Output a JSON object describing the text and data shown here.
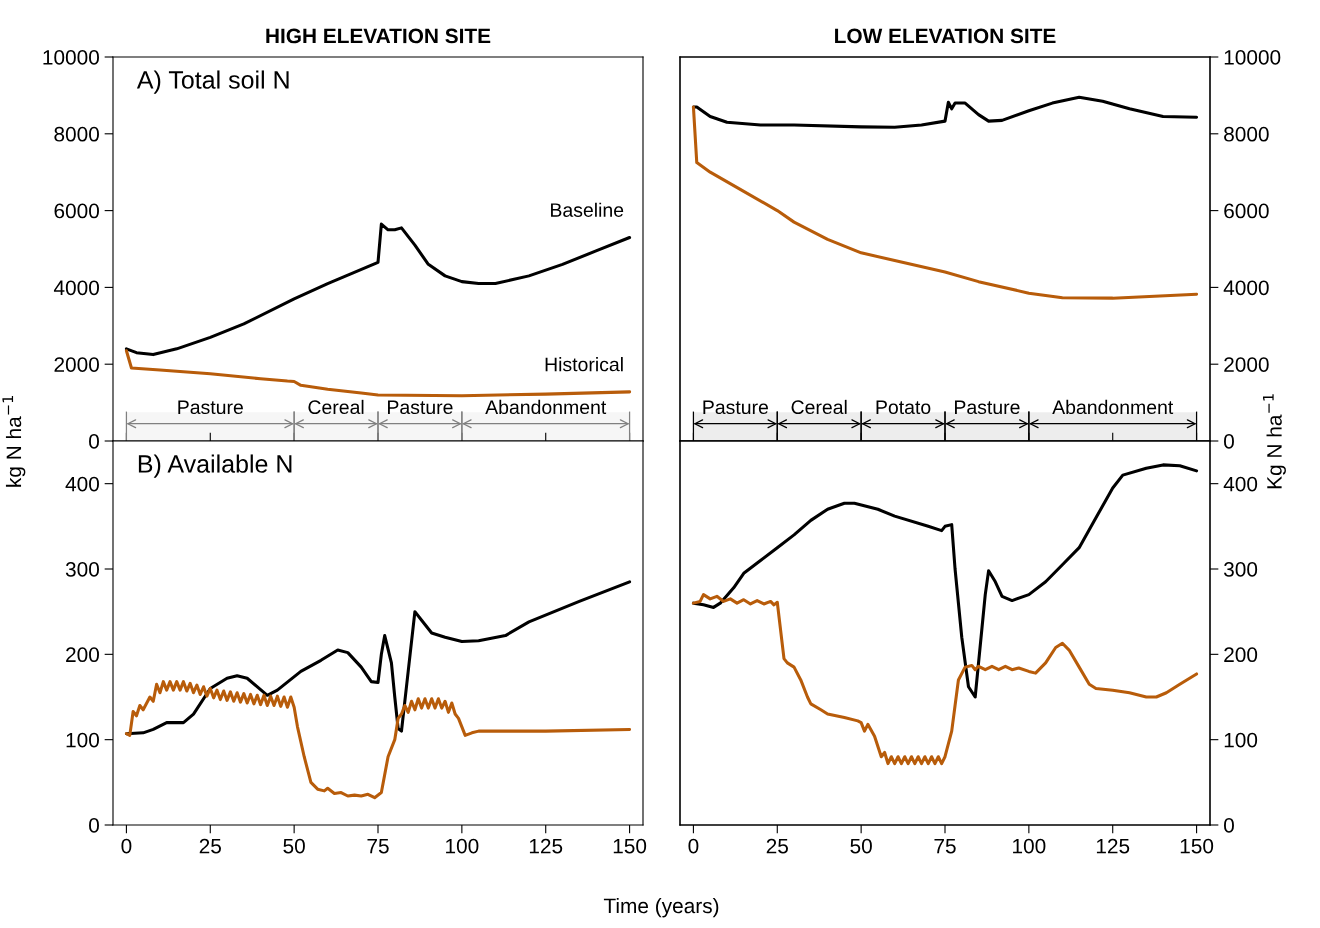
{
  "chart_data": [
    {
      "type": "line",
      "title": "HIGH ELEVATION SITE",
      "annotations": [
        "A) Total soil N"
      ],
      "xlim": [
        -4,
        154
      ],
      "xticks": [
        0,
        25,
        50,
        75,
        100,
        125,
        150
      ],
      "ylim": [
        0,
        10000
      ],
      "yticks": [
        0,
        2000,
        4000,
        6000,
        8000,
        10000
      ],
      "tick_labels": "y",
      "bands": [
        {
          "axis": "x",
          "from": 0,
          "to": 50,
          "label": "Pasture",
          "color": "#808080"
        },
        {
          "axis": "x",
          "from": 50,
          "to": 75,
          "label": "Cereal",
          "color": "#808080"
        },
        {
          "axis": "x",
          "from": 75,
          "to": 100,
          "label": "Pasture",
          "color": "#808080"
        },
        {
          "axis": "x",
          "from": 100,
          "to": 150,
          "label": "Abandonment",
          "color": "#808080"
        }
      ],
      "series": [
        {
          "name": "Baseline",
          "color": "#000000",
          "x": [
            0,
            3,
            8,
            15,
            25,
            35,
            50,
            60,
            75,
            76,
            78,
            80,
            82,
            86,
            90,
            95,
            100,
            105,
            110,
            120,
            130,
            140,
            150
          ],
          "values": [
            2400,
            2300,
            2250,
            2400,
            2700,
            3050,
            3700,
            4100,
            4650,
            5650,
            5500,
            5500,
            5550,
            5100,
            4600,
            4300,
            4150,
            4100,
            4100,
            4300,
            4600,
            4950,
            5300
          ]
        },
        {
          "name": "Historical",
          "color": "#b85c0a",
          "x": [
            0,
            1.5,
            10,
            25,
            40,
            48,
            50,
            52,
            60,
            70,
            75,
            100,
            125,
            150
          ],
          "values": [
            2350,
            1900,
            1850,
            1750,
            1620,
            1560,
            1550,
            1450,
            1350,
            1250,
            1200,
            1180,
            1220,
            1280
          ]
        }
      ]
    },
    {
      "type": "line",
      "title": "LOW ELEVATION SITE",
      "xlim": [
        -4,
        154
      ],
      "xticks": [
        0,
        25,
        50,
        75,
        100,
        125,
        150
      ],
      "y2lim": [
        0,
        10000
      ],
      "y2ticks": [
        0,
        2000,
        4000,
        6000,
        8000,
        10000
      ],
      "tick_labels": "y",
      "bands": [
        {
          "axis": "x",
          "from": 0,
          "to": 25,
          "label": "Pasture",
          "color": "#000000"
        },
        {
          "axis": "x",
          "from": 25,
          "to": 50,
          "label": "Cereal",
          "color": "#000000"
        },
        {
          "axis": "x",
          "from": 50,
          "to": 75,
          "label": "Potato",
          "color": "#000000"
        },
        {
          "axis": "x",
          "from": 75,
          "to": 100,
          "label": "Pasture",
          "color": "#000000"
        },
        {
          "axis": "x",
          "from": 100,
          "to": 150,
          "label": "Abandonment",
          "color": "#000000"
        }
      ],
      "series": [
        {
          "color": "#000000",
          "axis": "y2",
          "x": [
            0,
            1,
            5,
            10,
            20,
            30,
            50,
            60,
            68,
            75,
            76,
            77,
            78,
            81,
            85,
            88,
            92,
            100,
            107,
            115,
            122,
            130,
            140,
            150
          ],
          "values": [
            8700,
            8700,
            8450,
            8300,
            8230,
            8230,
            8180,
            8170,
            8230,
            8330,
            8820,
            8650,
            8800,
            8800,
            8500,
            8330,
            8350,
            8600,
            8800,
            8950,
            8850,
            8650,
            8450,
            8430
          ]
        },
        {
          "color": "#b85c0a",
          "axis": "y2",
          "x": [
            0,
            1,
            5,
            15,
            25,
            30,
            40,
            50,
            60,
            75,
            85,
            100,
            110,
            125,
            150
          ],
          "values": [
            8700,
            7250,
            7000,
            6500,
            6000,
            5700,
            5250,
            4900,
            4700,
            4400,
            4150,
            3850,
            3730,
            3720,
            3820
          ]
        }
      ]
    },
    {
      "type": "line",
      "annotations": [
        "B) Available N"
      ],
      "xlabel": "Time (years)",
      "ylabel": "kg N ha$^{−1}$",
      "xlim": [
        -4,
        154
      ],
      "xticks": [
        0,
        25,
        50,
        75,
        100,
        125,
        150
      ],
      "ylim": [
        0,
        450
      ],
      "yticks": [
        0,
        100,
        200,
        300,
        400
      ],
      "series": [
        {
          "color": "#000000",
          "x": [
            0,
            5,
            8,
            12,
            17,
            20,
            25,
            30,
            33,
            36,
            42,
            45,
            52,
            58,
            63,
            66,
            70,
            73,
            75,
            76,
            77,
            79,
            80,
            81,
            82,
            84,
            86,
            88,
            91,
            95,
            100,
            105,
            113,
            120,
            135,
            150
          ],
          "values": [
            107,
            108,
            112,
            120,
            120,
            130,
            160,
            172,
            175,
            172,
            152,
            158,
            180,
            193,
            205,
            202,
            185,
            168,
            167,
            200,
            222,
            190,
            150,
            113,
            110,
            180,
            250,
            240,
            225,
            220,
            215,
            216,
            222,
            238,
            262,
            285
          ]
        },
        {
          "color": "#b85c0a",
          "x": [
            0,
            1,
            2,
            3,
            4,
            5,
            7,
            8,
            9,
            10,
            11,
            12,
            13,
            14,
            15,
            16,
            17,
            18,
            19,
            20,
            21,
            22,
            23,
            24,
            25,
            26,
            27,
            28,
            29,
            30,
            31,
            32,
            33,
            34,
            35,
            36,
            37,
            38,
            39,
            40,
            41,
            42,
            43,
            44,
            45,
            46,
            47,
            48,
            49,
            50,
            51,
            53,
            55,
            57,
            59,
            60,
            62,
            64,
            66,
            68,
            70,
            72,
            74,
            76,
            78,
            80,
            81,
            82,
            83,
            84,
            85,
            86,
            87,
            88,
            89,
            90,
            91,
            92,
            93,
            94,
            95,
            96,
            97,
            98,
            99,
            100,
            101,
            103,
            105,
            125,
            150
          ],
          "values": [
            107,
            105,
            133,
            128,
            140,
            135,
            150,
            145,
            165,
            155,
            168,
            158,
            168,
            158,
            168,
            158,
            168,
            157,
            166,
            155,
            164,
            153,
            162,
            151,
            160,
            149,
            158,
            147,
            157,
            146,
            156,
            145,
            155,
            144,
            154,
            143,
            153,
            142,
            152,
            141,
            152,
            140,
            151,
            140,
            151,
            139,
            150,
            138,
            150,
            138,
            115,
            80,
            50,
            42,
            40,
            43,
            37,
            38,
            34,
            35,
            34,
            36,
            32,
            38,
            80,
            100,
            125,
            130,
            140,
            132,
            145,
            135,
            148,
            137,
            148,
            137,
            148,
            137,
            148,
            137,
            145,
            132,
            143,
            130,
            125,
            115,
            105,
            108,
            110,
            110,
            112
          ]
        }
      ]
    },
    {
      "type": "line",
      "y2label": "Kg N ha$^{−1}$",
      "xlim": [
        -4,
        154
      ],
      "xticks": [
        0,
        25,
        50,
        75,
        100,
        125,
        150
      ],
      "y2lim": [
        0,
        450
      ],
      "y2ticks": [
        0,
        100,
        200,
        300,
        400
      ],
      "series": [
        {
          "color": "#000000",
          "axis": "y2",
          "x": [
            0,
            3,
            6,
            8,
            12,
            15,
            20,
            25,
            30,
            35,
            40,
            45,
            48,
            55,
            60,
            70,
            74,
            75,
            77,
            78,
            80,
            82,
            84,
            86,
            87,
            88,
            90,
            92,
            95,
            100,
            105,
            110,
            115,
            120,
            125,
            128,
            135,
            140,
            145,
            150
          ],
          "values": [
            260,
            258,
            255,
            260,
            278,
            295,
            310,
            325,
            340,
            357,
            370,
            377,
            377,
            370,
            362,
            350,
            345,
            350,
            352,
            300,
            220,
            162,
            150,
            230,
            270,
            298,
            285,
            268,
            263,
            270,
            285,
            305,
            325,
            360,
            395,
            410,
            418,
            422,
            421,
            415
          ]
        },
        {
          "color": "#b85c0a",
          "axis": "y2",
          "x": [
            0,
            2,
            3,
            5,
            7,
            9,
            11,
            13,
            15,
            17,
            19,
            21,
            23,
            24,
            25,
            27,
            28,
            30,
            32,
            34,
            35,
            38,
            40,
            45,
            49,
            50,
            51,
            52,
            54,
            56,
            57,
            58,
            59,
            60,
            61,
            62,
            63,
            64,
            65,
            66,
            67,
            68,
            69,
            70,
            71,
            72,
            73,
            74,
            75,
            77,
            78,
            79,
            81,
            83,
            84,
            85,
            87,
            89,
            91,
            93,
            95,
            97,
            100,
            102,
            105,
            108,
            110,
            112,
            115,
            118,
            120,
            125,
            130,
            135,
            138,
            141,
            145,
            150
          ],
          "values": [
            260,
            262,
            270,
            265,
            268,
            262,
            265,
            260,
            264,
            259,
            263,
            259,
            262,
            258,
            261,
            195,
            190,
            185,
            170,
            150,
            142,
            135,
            130,
            126,
            122,
            120,
            110,
            118,
            104,
            80,
            85,
            72,
            80,
            72,
            80,
            72,
            80,
            72,
            80,
            72,
            80,
            72,
            80,
            72,
            80,
            72,
            80,
            72,
            80,
            110,
            140,
            170,
            185,
            187,
            182,
            186,
            182,
            186,
            182,
            186,
            182,
            184,
            180,
            178,
            190,
            208,
            213,
            205,
            185,
            165,
            160,
            158,
            155,
            150,
            150,
            155,
            165,
            177
          ]
        }
      ]
    }
  ]
}
